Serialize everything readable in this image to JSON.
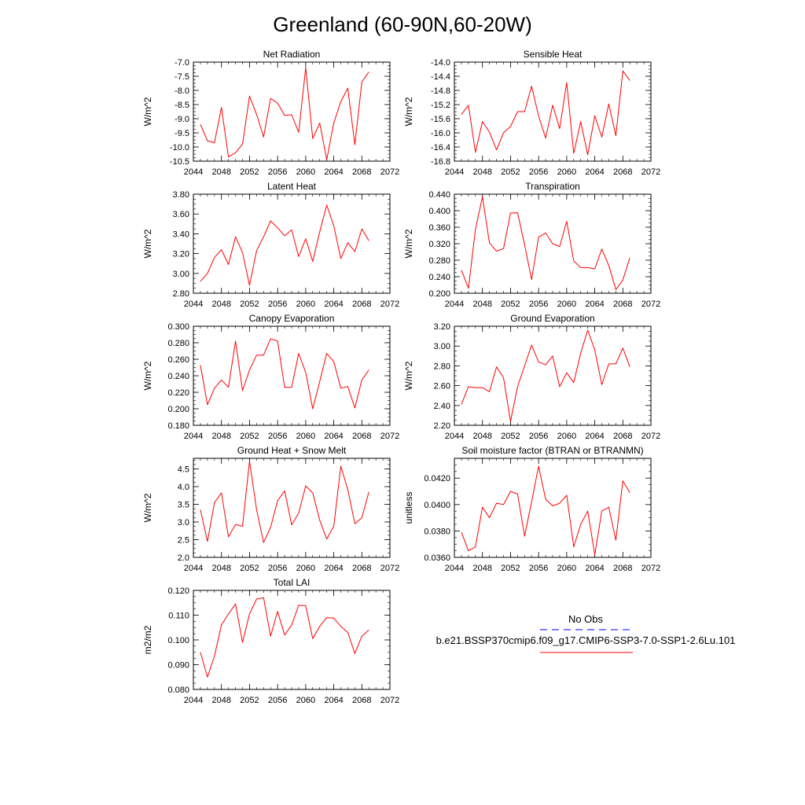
{
  "title": "Greenland (60-90N,60-20W)",
  "colors": {
    "model": "#ff0000",
    "obs": "#0000ff"
  },
  "legend": {
    "obs_label": "No Obs",
    "model_label": "b.e21.BSSP370cmip6.f09_g17.CMIP6-SSP3-7.0-SSP1-2.6Lu.101"
  },
  "chart_data": [
    {
      "type": "line",
      "title": "Net Radiation",
      "ylabel": "W/m^2",
      "xlim": [
        2044,
        2072
      ],
      "ylim": [
        -10.5,
        -7.0
      ],
      "xticks": [
        "2044",
        "2048",
        "2052",
        "2056",
        "2060",
        "2064",
        "2068",
        "2072"
      ],
      "yticks": [
        "-7.0",
        "-7.5",
        "-8.0",
        "-8.5",
        "-9.0",
        "-9.5",
        "-10.0",
        "-10.5"
      ],
      "x": [
        2045,
        2046,
        2047,
        2048,
        2049,
        2050,
        2051,
        2052,
        2053,
        2054,
        2055,
        2056,
        2057,
        2058,
        2059,
        2060,
        2061,
        2062,
        2063,
        2064,
        2065,
        2066,
        2067,
        2068,
        2069
      ],
      "y": [
        -9.2,
        -9.78,
        -9.85,
        -8.6,
        -10.35,
        -10.2,
        -9.9,
        -8.2,
        -8.85,
        -9.65,
        -8.28,
        -8.45,
        -8.88,
        -8.86,
        -9.48,
        -7.2,
        -9.7,
        -9.15,
        -10.45,
        -9.15,
        -8.4,
        -7.92,
        -9.92,
        -7.7,
        -7.35
      ]
    },
    {
      "type": "line",
      "title": "Sensible Heat",
      "ylabel": "W/m^2",
      "xlim": [
        2044,
        2072
      ],
      "ylim": [
        -16.8,
        -14.0
      ],
      "xticks": [
        "2044",
        "2048",
        "2052",
        "2056",
        "2060",
        "2064",
        "2068",
        "2072"
      ],
      "yticks": [
        "-14.0",
        "-14.4",
        "-14.8",
        "-15.2",
        "-15.6",
        "-16.0",
        "-16.4",
        "-16.8"
      ],
      "x": [
        2045,
        2046,
        2047,
        2048,
        2049,
        2050,
        2051,
        2052,
        2053,
        2054,
        2055,
        2056,
        2057,
        2058,
        2059,
        2060,
        2061,
        2062,
        2063,
        2064,
        2065,
        2066,
        2067,
        2068,
        2069
      ],
      "y": [
        -15.48,
        -15.22,
        -16.55,
        -15.68,
        -15.98,
        -16.48,
        -16.0,
        -15.82,
        -15.4,
        -15.4,
        -14.68,
        -15.52,
        -16.15,
        -15.22,
        -15.88,
        -14.58,
        -16.58,
        -15.68,
        -16.62,
        -15.52,
        -16.12,
        -15.18,
        -16.08,
        -14.25,
        -14.52
      ]
    },
    {
      "type": "line",
      "title": "Latent Heat",
      "ylabel": "W/m^2",
      "xlim": [
        2044,
        2072
      ],
      "ylim": [
        2.8,
        3.8
      ],
      "xticks": [
        "2044",
        "2048",
        "2052",
        "2056",
        "2060",
        "2064",
        "2068",
        "2072"
      ],
      "yticks": [
        "3.80",
        "3.60",
        "3.40",
        "3.20",
        "3.00",
        "2.80"
      ],
      "x": [
        2045,
        2046,
        2047,
        2048,
        2049,
        2050,
        2051,
        2052,
        2053,
        2054,
        2055,
        2056,
        2057,
        2058,
        2059,
        2060,
        2061,
        2062,
        2063,
        2064,
        2065,
        2066,
        2067,
        2068,
        2069
      ],
      "y": [
        2.92,
        3.0,
        3.16,
        3.24,
        3.09,
        3.37,
        3.21,
        2.88,
        3.23,
        3.37,
        3.53,
        3.46,
        3.38,
        3.44,
        3.17,
        3.35,
        3.12,
        3.42,
        3.69,
        3.48,
        3.15,
        3.31,
        3.22,
        3.45,
        3.33
      ]
    },
    {
      "type": "line",
      "title": "Transpiration",
      "ylabel": "W/m^2",
      "xlim": [
        2044,
        2072
      ],
      "ylim": [
        0.2,
        0.44
      ],
      "xticks": [
        "2044",
        "2048",
        "2052",
        "2056",
        "2060",
        "2064",
        "2068",
        "2072"
      ],
      "yticks": [
        "0.440",
        "0.400",
        "0.360",
        "0.320",
        "0.280",
        "0.240",
        "0.200"
      ],
      "x": [
        2045,
        2046,
        2047,
        2048,
        2049,
        2050,
        2051,
        2052,
        2053,
        2054,
        2055,
        2056,
        2057,
        2058,
        2059,
        2060,
        2061,
        2062,
        2063,
        2064,
        2065,
        2066,
        2067,
        2068,
        2069
      ],
      "y": [
        0.256,
        0.212,
        0.355,
        0.434,
        0.322,
        0.302,
        0.308,
        0.394,
        0.395,
        0.318,
        0.233,
        0.336,
        0.346,
        0.32,
        0.313,
        0.374,
        0.278,
        0.262,
        0.262,
        0.259,
        0.307,
        0.267,
        0.209,
        0.232,
        0.286
      ]
    },
    {
      "type": "line",
      "title": "Canopy Evaporation",
      "ylabel": "W/m^2",
      "xlim": [
        2044,
        2072
      ],
      "ylim": [
        0.18,
        0.3
      ],
      "xticks": [
        "2044",
        "2048",
        "2052",
        "2056",
        "2060",
        "2064",
        "2068",
        "2072"
      ],
      "yticks": [
        "0.300",
        "0.280",
        "0.260",
        "0.240",
        "0.220",
        "0.200",
        "0.180"
      ],
      "x": [
        2045,
        2046,
        2047,
        2048,
        2049,
        2050,
        2051,
        2052,
        2053,
        2054,
        2055,
        2056,
        2057,
        2058,
        2059,
        2060,
        2061,
        2062,
        2063,
        2064,
        2065,
        2066,
        2067,
        2068,
        2069
      ],
      "y": [
        0.253,
        0.205,
        0.225,
        0.235,
        0.226,
        0.282,
        0.222,
        0.247,
        0.265,
        0.265,
        0.285,
        0.282,
        0.226,
        0.226,
        0.267,
        0.244,
        0.2,
        0.233,
        0.267,
        0.257,
        0.225,
        0.227,
        0.201,
        0.235,
        0.247
      ]
    },
    {
      "type": "line",
      "title": "Ground Evaporation",
      "ylabel": "W/m^2",
      "xlim": [
        2044,
        2072
      ],
      "ylim": [
        2.2,
        3.2
      ],
      "xticks": [
        "2044",
        "2048",
        "2052",
        "2056",
        "2060",
        "2064",
        "2068",
        "2072"
      ],
      "yticks": [
        "3.20",
        "3.00",
        "2.80",
        "2.60",
        "2.40",
        "2.20"
      ],
      "x": [
        2045,
        2046,
        2047,
        2048,
        2049,
        2050,
        2051,
        2052,
        2053,
        2054,
        2055,
        2056,
        2057,
        2058,
        2059,
        2060,
        2061,
        2062,
        2063,
        2064,
        2065,
        2066,
        2067,
        2068,
        2069
      ],
      "y": [
        2.41,
        2.59,
        2.58,
        2.58,
        2.54,
        2.79,
        2.68,
        2.24,
        2.59,
        2.8,
        3.01,
        2.84,
        2.81,
        2.9,
        2.59,
        2.73,
        2.63,
        2.93,
        3.16,
        2.96,
        2.61,
        2.82,
        2.82,
        2.98,
        2.79
      ]
    },
    {
      "type": "line",
      "title": "Ground Heat + Snow Melt",
      "ylabel": "W/m^2",
      "xlim": [
        2044,
        2072
      ],
      "ylim": [
        2.0,
        4.8
      ],
      "xticks": [
        "2044",
        "2048",
        "2052",
        "2056",
        "2060",
        "2064",
        "2068",
        "2072"
      ],
      "yticks": [
        "4.5",
        "4.0",
        "3.5",
        "3.0",
        "2.5",
        "2.0"
      ],
      "x": [
        2045,
        2046,
        2047,
        2048,
        2049,
        2050,
        2051,
        2052,
        2053,
        2054,
        2055,
        2056,
        2057,
        2058,
        2059,
        2060,
        2061,
        2062,
        2063,
        2064,
        2065,
        2066,
        2067,
        2068,
        2069
      ],
      "y": [
        3.35,
        2.45,
        3.55,
        3.82,
        2.58,
        2.93,
        2.88,
        4.72,
        3.35,
        2.42,
        2.85,
        3.6,
        3.88,
        2.92,
        3.25,
        4.02,
        3.82,
        3.05,
        2.52,
        2.88,
        4.58,
        3.92,
        2.95,
        3.12,
        3.85
      ]
    },
    {
      "type": "line",
      "title": "Soil moisture factor (BTRAN or BTRANMN)",
      "ylabel": "unitless",
      "xlim": [
        2044,
        2072
      ],
      "ylim": [
        0.036,
        0.0435
      ],
      "xticks": [
        "2044",
        "2048",
        "2052",
        "2056",
        "2060",
        "2064",
        "2068",
        "2072"
      ],
      "yticks": [
        "0.0420",
        "0.0400",
        "0.0380",
        "0.0360"
      ],
      "x": [
        2045,
        2046,
        2047,
        2048,
        2049,
        2050,
        2051,
        2052,
        2053,
        2054,
        2055,
        2056,
        2057,
        2058,
        2059,
        2060,
        2061,
        2062,
        2063,
        2064,
        2065,
        2066,
        2067,
        2068,
        2069
      ],
      "y": [
        0.0379,
        0.0365,
        0.0368,
        0.0398,
        0.039,
        0.0401,
        0.04,
        0.041,
        0.0408,
        0.0376,
        0.0402,
        0.0429,
        0.0404,
        0.0399,
        0.0401,
        0.0407,
        0.0368,
        0.0385,
        0.0395,
        0.0362,
        0.0395,
        0.0398,
        0.0373,
        0.0418,
        0.0409
      ]
    },
    {
      "type": "line",
      "title": "Total LAI",
      "ylabel": "m2/m2",
      "xlim": [
        2044,
        2072
      ],
      "ylim": [
        0.08,
        0.12
      ],
      "xticks": [
        "2044",
        "2048",
        "2052",
        "2056",
        "2060",
        "2064",
        "2068",
        "2072"
      ],
      "yticks": [
        "0.120",
        "0.110",
        "0.100",
        "0.090",
        "0.080"
      ],
      "x": [
        2045,
        2046,
        2047,
        2048,
        2049,
        2050,
        2051,
        2052,
        2053,
        2054,
        2055,
        2056,
        2057,
        2058,
        2059,
        2060,
        2061,
        2062,
        2063,
        2064,
        2065,
        2066,
        2067,
        2068,
        2069
      ],
      "y": [
        0.095,
        0.085,
        0.0935,
        0.106,
        0.1105,
        0.1145,
        0.099,
        0.1105,
        0.1165,
        0.117,
        0.1015,
        0.1115,
        0.102,
        0.106,
        0.114,
        0.1138,
        0.1005,
        0.1055,
        0.109,
        0.1088,
        0.1055,
        0.103,
        0.0945,
        0.1015,
        0.104
      ]
    }
  ]
}
